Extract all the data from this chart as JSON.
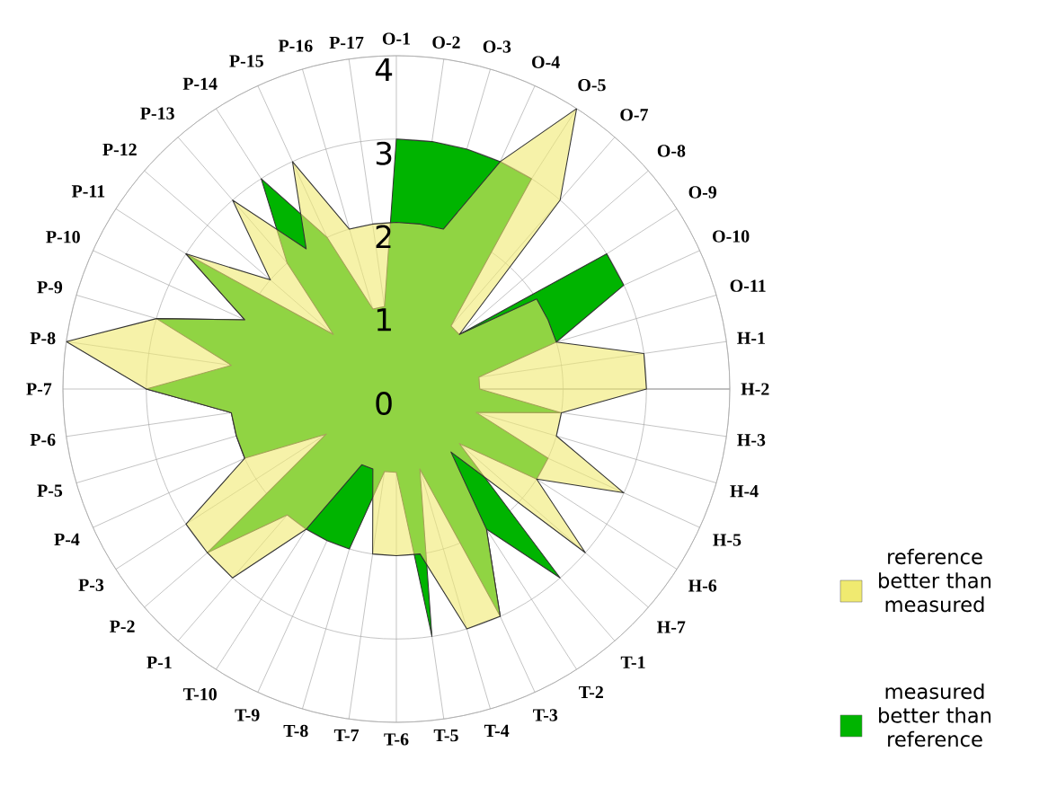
{
  "chart_data": {
    "type": "radar",
    "categories": [
      "O-1",
      "O-2",
      "O-3",
      "O-4",
      "O-5",
      "O-7",
      "O-8",
      "O-9",
      "O-10",
      "O-11",
      "H-1",
      "H-2",
      "H-3",
      "H-4",
      "H-5",
      "H-6",
      "H-7",
      "T-1",
      "T-2",
      "T-3",
      "T-4",
      "T-5",
      "T-6",
      "T-7",
      "T-8",
      "T-9",
      "T-10",
      "P-1",
      "P-2",
      "P-3",
      "P-4",
      "P-5",
      "P-6",
      "P-7",
      "P-8",
      "P-9",
      "P-10",
      "P-11",
      "P-12",
      "P-13",
      "P-14",
      "P-15",
      "P-16",
      "P-17"
    ],
    "series": [
      {
        "name": "reference better than measured",
        "color": "#f0ea70",
        "values": [
          2,
          2,
          2,
          3,
          4,
          3,
          1,
          2,
          2,
          2,
          3,
          3,
          2,
          2,
          3,
          2,
          3,
          1,
          2,
          3,
          3,
          2,
          2,
          2,
          1,
          1,
          2,
          3,
          3,
          3,
          2,
          2,
          2,
          3,
          4,
          3,
          2,
          3,
          2,
          3,
          2,
          3,
          2,
          2
        ]
      },
      {
        "name": "measured better than reference",
        "color": "#00b400",
        "values": [
          3,
          3,
          3,
          3,
          3,
          1,
          1,
          3,
          3,
          2,
          1,
          1,
          2,
          1,
          2,
          2,
          1,
          3,
          2,
          3,
          1,
          3,
          1,
          1,
          2,
          2,
          2,
          2,
          3,
          1,
          2,
          2,
          2,
          3,
          2,
          3,
          2,
          3,
          1,
          2,
          3,
          2,
          1,
          1
        ]
      }
    ],
    "ylim": [
      0,
      4
    ],
    "yticks": [
      0,
      1,
      2,
      3,
      4
    ],
    "grid": true,
    "legend": "bottom right"
  }
}
